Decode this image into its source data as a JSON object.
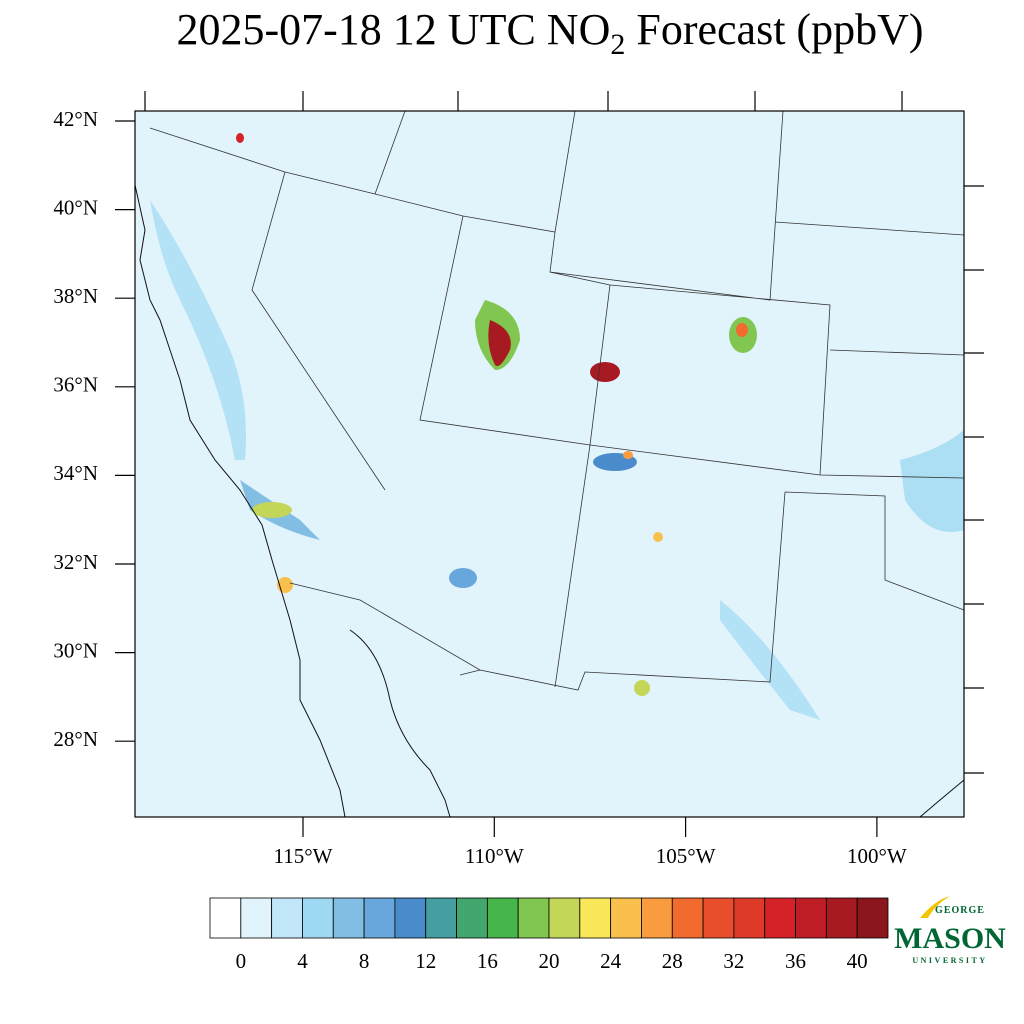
{
  "title": {
    "main": "2025-07-18 12 UTC NO",
    "sub": "2",
    "rest": " Forecast (ppbV)"
  },
  "lat_labels": [
    "42°N",
    "40°N",
    "38°N",
    "36°N",
    "34°N",
    "32°N",
    "30°N",
    "28°N"
  ],
  "lon_labels": [
    "115°W",
    "110°W",
    "105°W",
    "100°W"
  ],
  "colorbar": {
    "colors": [
      "#ffffff",
      "#e1f3fb",
      "#c0e6f7",
      "#9fd8f3",
      "#82bde3",
      "#68a7dc",
      "#4a8ccb",
      "#459ea0",
      "#43a66f",
      "#46b54a",
      "#82c652",
      "#c3d657",
      "#f9e75a",
      "#f9c04d",
      "#f99b3f",
      "#f26b2e",
      "#e84e2b",
      "#dd3a29",
      "#d42228",
      "#bf1d25",
      "#a81a22",
      "#8c161d"
    ],
    "labels": [
      0,
      4,
      8,
      12,
      16,
      20,
      24,
      28,
      32,
      36,
      40
    ]
  },
  "logo": {
    "top": "GEORGE",
    "main": "MASON",
    "bottom": "UNIVERSITY"
  }
}
